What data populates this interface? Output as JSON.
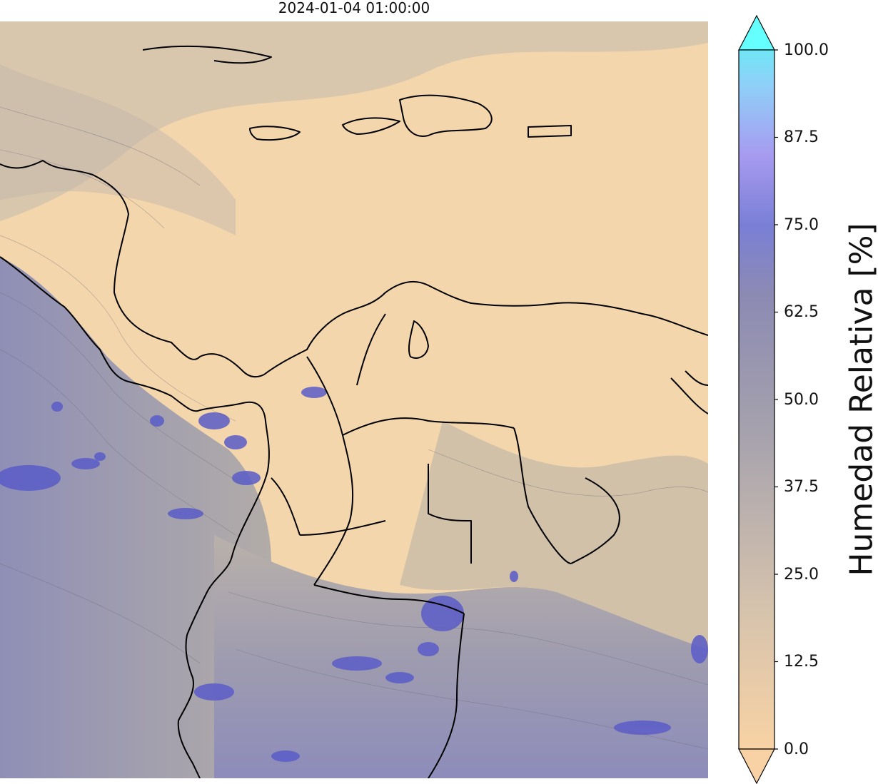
{
  "map": {
    "title": "2024-01-04 01:00:00"
  },
  "colorbar": {
    "label": "Humedad Relativa [%]",
    "ticks": [
      "100.0",
      "87.5",
      "75.0",
      "62.5",
      "50.0",
      "37.5",
      "25.0",
      "12.5",
      "0.0"
    ],
    "range": [
      0,
      100
    ],
    "extend": "both",
    "colors": {
      "low": "#f8d2a4",
      "mid": "#9e9db0",
      "high_blue": "#7a7fd6",
      "top": "#66ffff"
    }
  }
}
